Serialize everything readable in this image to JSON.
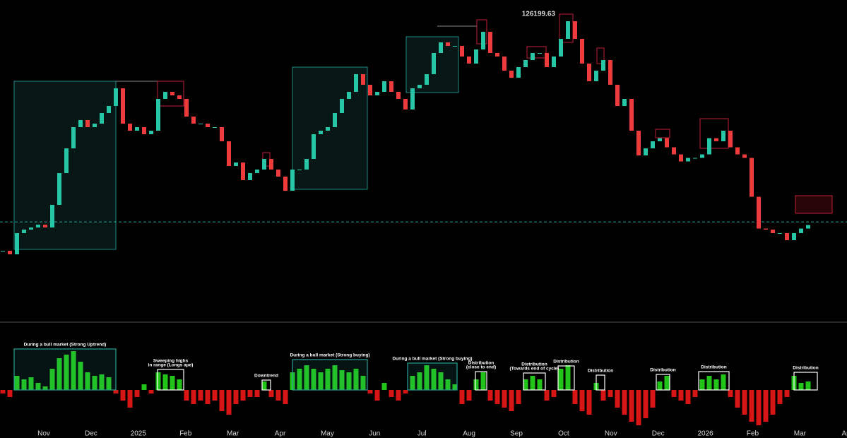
{
  "chart_data": {
    "type": "candlestick",
    "high_label": 126199.63,
    "price": {
      "ylim": [
        53100,
        129600
      ],
      "up_color": "#26c6a6",
      "down_color": "#ef3b3b",
      "current_level": 76200,
      "values": [
        69250,
        68400,
        73500,
        74350,
        74860,
        75540,
        74860,
        80300,
        87950,
        93900,
        99000,
        100700,
        99000,
        99850,
        102400,
        104100,
        108350,
        99850,
        98150,
        99000,
        97300,
        98150,
        105800,
        107500,
        106650,
        105800,
        101550,
        99850,
        99850,
        99000,
        99000,
        95600,
        89650,
        90500,
        86250,
        87950,
        88800,
        91350,
        88800,
        87100,
        83700,
        88800,
        88800,
        91350,
        97300,
        98150,
        99000,
        102400,
        105800,
        107500,
        111750,
        109200,
        106650,
        107500,
        110050,
        107500,
        105800,
        103250,
        108350,
        109200,
        111750,
        116850,
        119400,
        118550,
        118550,
        116000,
        114300,
        117700,
        121950,
        116850,
        116000,
        112600,
        110900,
        113450,
        115150,
        116850,
        116850,
        113450,
        116000,
        120250,
        124500,
        120250,
        114300,
        110050,
        112600,
        115150,
        109200,
        104100,
        105800,
        98150,
        92200,
        93900,
        95600,
        96350,
        94150,
        92450,
        90750,
        91600,
        91600,
        92450,
        96350,
        95600,
        98150,
        94150,
        92450,
        91600,
        82250,
        74600,
        74350,
        73500,
        73500,
        71800,
        73500,
        74600,
        75450
      ]
    },
    "oscillator": {
      "ylim": [
        -58,
        57
      ],
      "pos_color": "#22c41a",
      "neg_color": "#d81515",
      "values": [
        -5,
        -10,
        20,
        15,
        18,
        10,
        5,
        30,
        45,
        50,
        55,
        40,
        25,
        20,
        22,
        18,
        -5,
        -15,
        -25,
        -10,
        8,
        -5,
        25,
        22,
        20,
        15,
        -15,
        -20,
        -15,
        -20,
        -15,
        -30,
        -35,
        -20,
        -15,
        -10,
        -10,
        12,
        -10,
        -15,
        -20,
        25,
        30,
        35,
        30,
        25,
        30,
        35,
        28,
        25,
        30,
        20,
        -5,
        -15,
        10,
        -10,
        -15,
        -5,
        20,
        25,
        35,
        30,
        25,
        15,
        8,
        -20,
        -15,
        15,
        25,
        -15,
        -20,
        -25,
        -30,
        -20,
        15,
        20,
        15,
        -15,
        -10,
        30,
        35,
        -20,
        -30,
        -35,
        10,
        -15,
        -10,
        -25,
        -35,
        -45,
        -50,
        -40,
        -25,
        12,
        20,
        -10,
        -15,
        -20,
        -10,
        15,
        20,
        15,
        22,
        -10,
        -25,
        -35,
        -45,
        -50,
        -45,
        -35,
        -20,
        -10,
        20,
        10,
        12
      ]
    },
    "x_axis_labels": [
      "Nov",
      "Dec",
      "2025",
      "Feb",
      "Mar",
      "Apr",
      "May",
      "Jun",
      "Jul",
      "Aug",
      "Sep",
      "Oct",
      "Nov",
      "Dec",
      "2026",
      "Feb",
      "Mar",
      "Apr"
    ],
    "annotations": [
      [
        "During a bull market (Strong Uptrend)"
      ],
      [
        "Sweeping highs",
        "in range (Longs ape)"
      ],
      [
        "Downtrend"
      ],
      [
        "During a bull market (Strong buying)"
      ],
      [
        "During a bull market (Strong buying)"
      ],
      [
        "Distribution",
        "(close to end)"
      ],
      [
        "Distribution",
        "(Towards end of cycle)"
      ],
      [
        "Distribution"
      ],
      [
        "Distribution"
      ],
      [
        "Distribution"
      ],
      [
        "Distribution"
      ],
      [
        "Distribution"
      ]
    ]
  }
}
